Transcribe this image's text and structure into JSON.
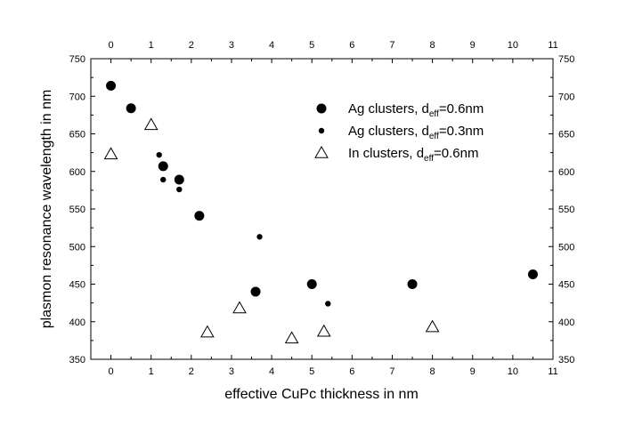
{
  "chart_data": {
    "type": "scatter",
    "xlabel": "effective CuPc thickness in nm",
    "ylabel": "plasmon resonance wavelength in nm",
    "xlim": [
      -0.5,
      11
    ],
    "ylim": [
      350,
      750
    ],
    "xticks": [
      0,
      1,
      2,
      3,
      4,
      5,
      6,
      7,
      8,
      9,
      10,
      11
    ],
    "yticks": [
      350,
      400,
      450,
      500,
      550,
      600,
      650,
      700,
      750
    ],
    "grid": false,
    "legend_placement": "top-right",
    "series": [
      {
        "name": "Ag clusters, deff=0.6nm",
        "legend": {
          "prefix": "Ag clusters, d",
          "sub": "eff",
          "suffix": "=0.6nm"
        },
        "marker": "large-filled-circle",
        "points": [
          [
            0,
            714
          ],
          [
            0.5,
            684
          ],
          [
            1.3,
            607
          ],
          [
            1.7,
            589
          ],
          [
            2.2,
            541
          ],
          [
            3.6,
            440
          ],
          [
            5.0,
            450
          ],
          [
            7.5,
            450
          ],
          [
            10.5,
            463
          ]
        ]
      },
      {
        "name": "Ag clusters, deff=0.3nm",
        "legend": {
          "prefix": "Ag clusters, d",
          "sub": "eff",
          "suffix": "=0.3nm"
        },
        "marker": "small-filled-circle",
        "points": [
          [
            1.2,
            622
          ],
          [
            1.3,
            589
          ],
          [
            1.7,
            576
          ],
          [
            3.7,
            513
          ],
          [
            5.4,
            424
          ]
        ]
      },
      {
        "name": "In clusters, deff=0.6nm",
        "legend": {
          "prefix": "In  clusters, d",
          "sub": "eff",
          "suffix": "=0.6nm"
        },
        "marker": "open-triangle",
        "points": [
          [
            0,
            623
          ],
          [
            1.0,
            662
          ],
          [
            2.4,
            386
          ],
          [
            3.2,
            418
          ],
          [
            4.5,
            378
          ],
          [
            5.3,
            387
          ],
          [
            8.0,
            393
          ]
        ]
      }
    ]
  }
}
